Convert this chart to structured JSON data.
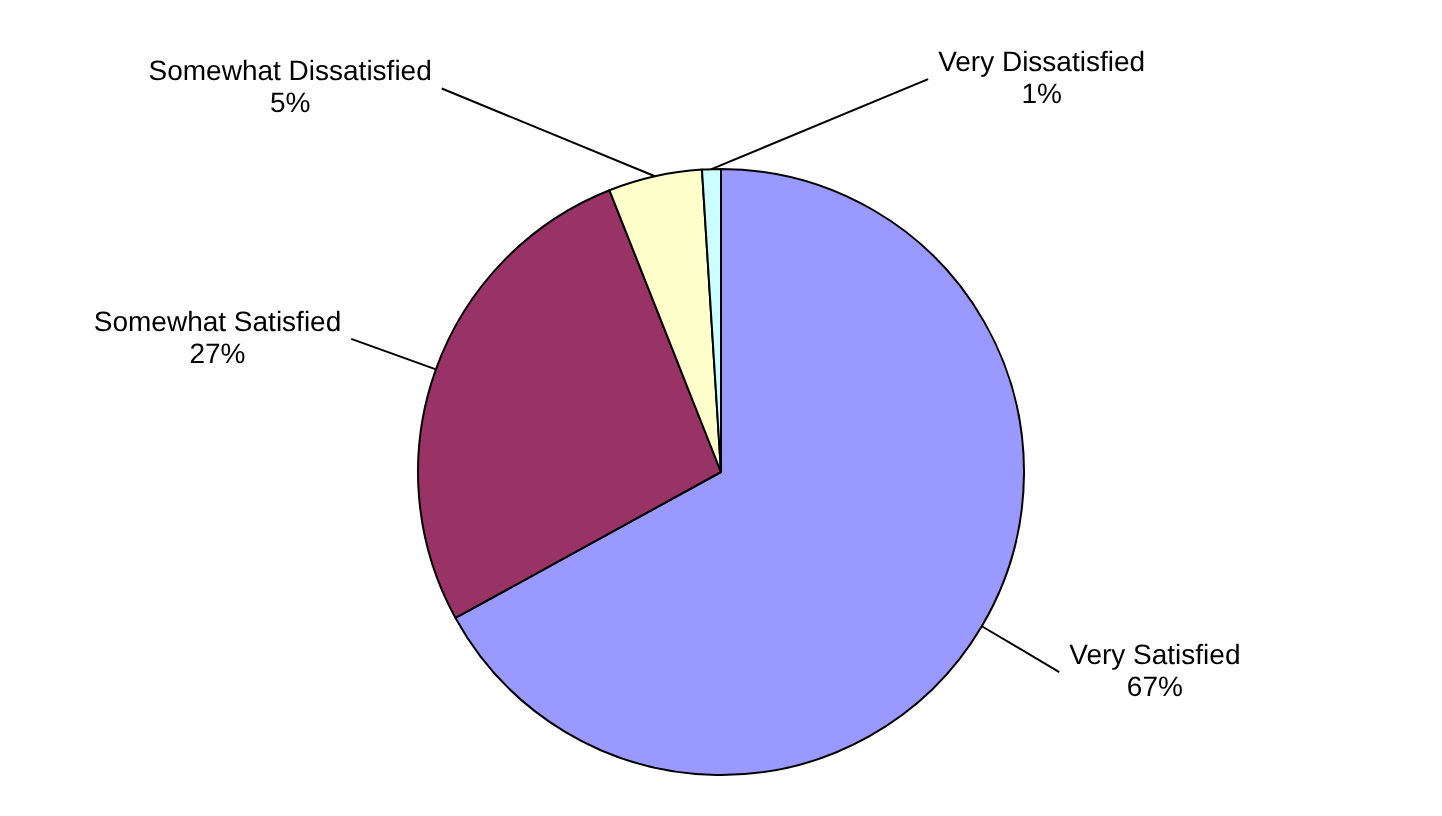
{
  "chart_data": {
    "type": "pie",
    "categories": [
      "Very Satisfied",
      "Somewhat Satisfied",
      "Somewhat Dissatisfied",
      "Very Dissatisfied"
    ],
    "values": [
      67,
      27,
      5,
      1
    ],
    "colors": [
      "#9999ff",
      "#993366",
      "#ffffcc",
      "#ccffff"
    ],
    "value_labels": [
      "67%",
      "27%",
      "5%",
      "1%"
    ],
    "legend": false
  }
}
